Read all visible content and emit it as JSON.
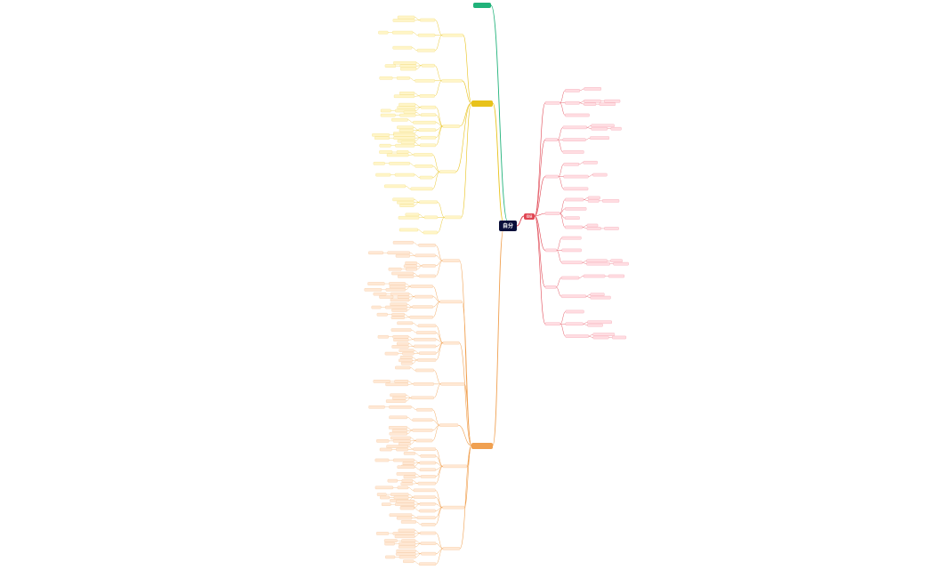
{
  "mindmap": {
    "root": {
      "label": "自分",
      "color": "#0b0f3a"
    },
    "branches": {
      "top_green": {
        "label": "",
        "color": "#20b27a"
      },
      "yellow": {
        "label": "",
        "color": "#e8c21a"
      },
      "orange": {
        "label": "",
        "color": "#f0a050"
      },
      "red": {
        "label": "価値",
        "color": "#e04552"
      }
    },
    "colors": {
      "yellow_leaf_fill": "#fff5c8",
      "yellow_leaf_stroke": "#f2dc7a",
      "orange_leaf_fill": "#ffe8d4",
      "orange_leaf_stroke": "#f4c49a",
      "red_leaf_fill": "#ffdde2",
      "red_leaf_stroke": "#f29aa7"
    }
  }
}
